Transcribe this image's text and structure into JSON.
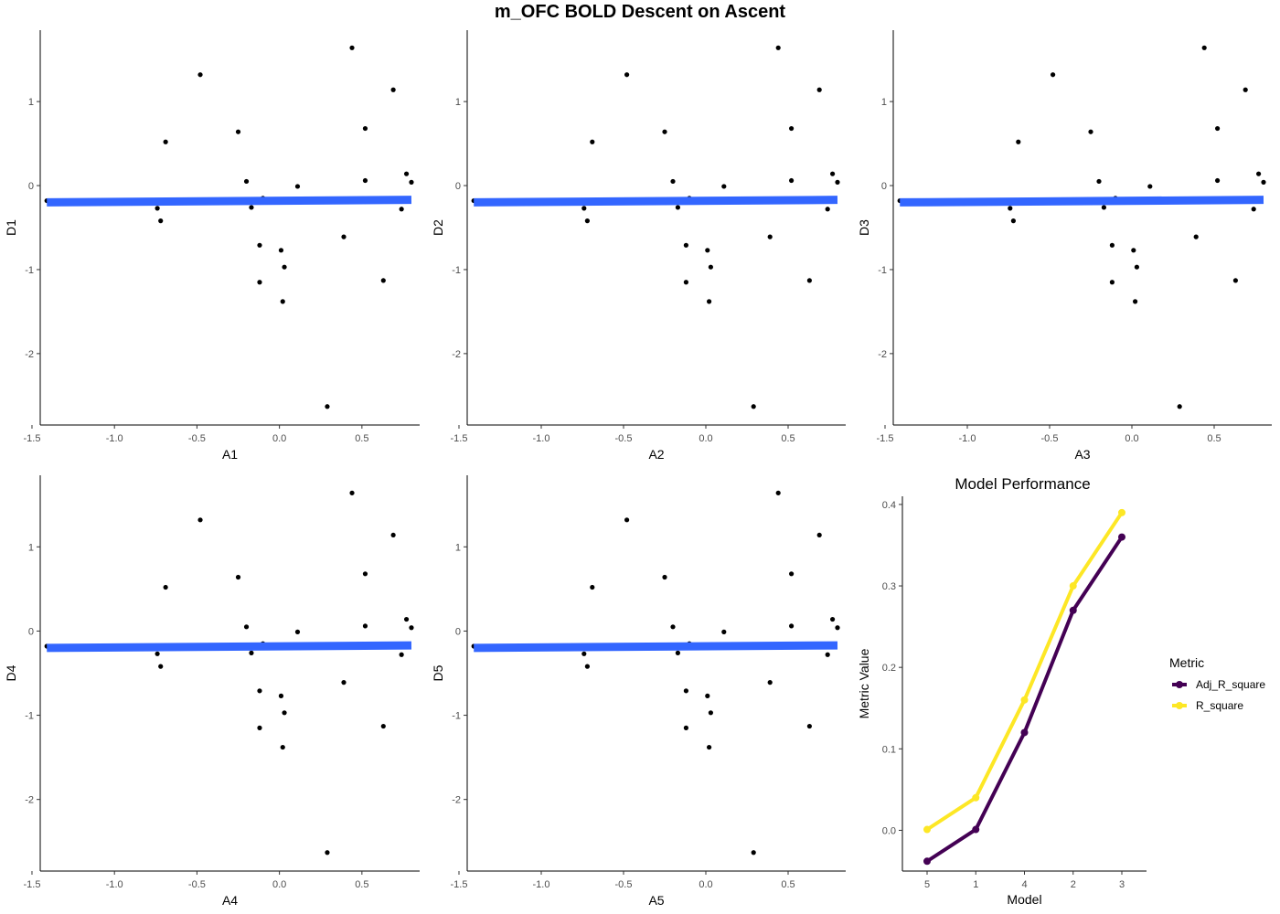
{
  "title": "m_OFC BOLD Descent on Ascent",
  "chart_data": [
    {
      "type": "scatter",
      "xlabel": "A1",
      "ylabel": "D1",
      "xlim": [
        -1.45,
        0.85
      ],
      "ylim": [
        -2.85,
        1.85
      ],
      "xticks": [
        -1.5,
        -1.0,
        -0.5,
        0.0,
        0.5
      ],
      "xtick_labels": [
        "-1.5",
        "-1.0",
        "-0.5",
        "0.0",
        "0.5"
      ],
      "yticks": [
        -2,
        -1,
        0,
        1
      ],
      "ytick_labels": [
        "-2",
        "-1",
        "0",
        "1"
      ],
      "grid": false,
      "points": {
        "x": [
          -1.41,
          -0.74,
          -0.72,
          -0.69,
          -0.48,
          -0.25,
          -0.2,
          -0.17,
          -0.12,
          -0.1,
          -0.12,
          0.01,
          0.02,
          0.03,
          0.11,
          0.29,
          0.39,
          0.44,
          0.52,
          0.52,
          0.63,
          0.69,
          0.74,
          0.77,
          0.8
        ],
        "y": [
          -0.18,
          -0.27,
          -0.42,
          0.52,
          1.32,
          0.64,
          0.05,
          -0.26,
          -0.71,
          -0.15,
          -1.15,
          -0.77,
          -1.38,
          -0.97,
          -0.01,
          -2.63,
          -0.61,
          1.64,
          0.06,
          0.68,
          -1.13,
          1.14,
          -0.28,
          0.14,
          0.04
        ]
      },
      "fit_line": {
        "x": [
          -1.41,
          0.8
        ],
        "y": [
          -0.2,
          -0.17
        ]
      }
    },
    {
      "type": "scatter",
      "xlabel": "A2",
      "ylabel": "D2",
      "xlim": [
        -1.45,
        0.85
      ],
      "ylim": [
        -2.85,
        1.85
      ],
      "xticks": [
        -1.5,
        -1.0,
        -0.5,
        0.0,
        0.5
      ],
      "xtick_labels": [
        "-1.5",
        "-1.0",
        "-0.5",
        "0.0",
        "0.5"
      ],
      "yticks": [
        -2,
        -1,
        0,
        1
      ],
      "ytick_labels": [
        "-2",
        "-1",
        "0",
        "1"
      ],
      "grid": false,
      "points": {
        "x": [
          -1.41,
          -0.74,
          -0.72,
          -0.69,
          -0.48,
          -0.25,
          -0.2,
          -0.17,
          -0.12,
          -0.1,
          -0.12,
          0.01,
          0.02,
          0.03,
          0.11,
          0.29,
          0.39,
          0.44,
          0.52,
          0.52,
          0.63,
          0.69,
          0.74,
          0.77,
          0.8
        ],
        "y": [
          -0.18,
          -0.27,
          -0.42,
          0.52,
          1.32,
          0.64,
          0.05,
          -0.26,
          -0.71,
          -0.15,
          -1.15,
          -0.77,
          -1.38,
          -0.97,
          -0.01,
          -2.63,
          -0.61,
          1.64,
          0.06,
          0.68,
          -1.13,
          1.14,
          -0.28,
          0.14,
          0.04
        ]
      },
      "fit_line": {
        "x": [
          -1.41,
          0.8
        ],
        "y": [
          -0.2,
          -0.17
        ]
      }
    },
    {
      "type": "scatter",
      "xlabel": "A3",
      "ylabel": "D3",
      "xlim": [
        -1.45,
        0.85
      ],
      "ylim": [
        -2.85,
        1.85
      ],
      "xticks": [
        -1.5,
        -1.0,
        -0.5,
        0.0,
        0.5
      ],
      "xtick_labels": [
        "-1.5",
        "-1.0",
        "-0.5",
        "0.0",
        "0.5"
      ],
      "yticks": [
        -2,
        -1,
        0,
        1
      ],
      "ytick_labels": [
        "-2",
        "-1",
        "0",
        "1"
      ],
      "grid": false,
      "points": {
        "x": [
          -1.41,
          -0.74,
          -0.72,
          -0.69,
          -0.48,
          -0.25,
          -0.2,
          -0.17,
          -0.12,
          -0.1,
          -0.12,
          0.01,
          0.02,
          0.03,
          0.11,
          0.29,
          0.39,
          0.44,
          0.52,
          0.52,
          0.63,
          0.69,
          0.74,
          0.77,
          0.8
        ],
        "y": [
          -0.18,
          -0.27,
          -0.42,
          0.52,
          1.32,
          0.64,
          0.05,
          -0.26,
          -0.71,
          -0.15,
          -1.15,
          -0.77,
          -1.38,
          -0.97,
          -0.01,
          -2.63,
          -0.61,
          1.64,
          0.06,
          0.68,
          -1.13,
          1.14,
          -0.28,
          0.14,
          0.04
        ]
      },
      "fit_line": {
        "x": [
          -1.41,
          0.8
        ],
        "y": [
          -0.2,
          -0.17
        ]
      }
    },
    {
      "type": "scatter",
      "xlabel": "A4",
      "ylabel": "D4",
      "xlim": [
        -1.45,
        0.85
      ],
      "ylim": [
        -2.85,
        1.85
      ],
      "xticks": [
        -1.5,
        -1.0,
        -0.5,
        0.0,
        0.5
      ],
      "xtick_labels": [
        "-1.5",
        "-1.0",
        "-0.5",
        "0.0",
        "0.5"
      ],
      "yticks": [
        -2,
        -1,
        0,
        1
      ],
      "ytick_labels": [
        "-2",
        "-1",
        "0",
        "1"
      ],
      "grid": false,
      "points": {
        "x": [
          -1.41,
          -0.74,
          -0.72,
          -0.69,
          -0.48,
          -0.25,
          -0.2,
          -0.17,
          -0.12,
          -0.1,
          -0.12,
          0.01,
          0.02,
          0.03,
          0.11,
          0.29,
          0.39,
          0.44,
          0.52,
          0.52,
          0.63,
          0.69,
          0.74,
          0.77,
          0.8
        ],
        "y": [
          -0.18,
          -0.27,
          -0.42,
          0.52,
          1.32,
          0.64,
          0.05,
          -0.26,
          -0.71,
          -0.15,
          -1.15,
          -0.77,
          -1.38,
          -0.97,
          -0.01,
          -2.63,
          -0.61,
          1.64,
          0.06,
          0.68,
          -1.13,
          1.14,
          -0.28,
          0.14,
          0.04
        ]
      },
      "fit_line": {
        "x": [
          -1.41,
          0.8
        ],
        "y": [
          -0.2,
          -0.17
        ]
      }
    },
    {
      "type": "scatter",
      "xlabel": "A5",
      "ylabel": "D5",
      "xlim": [
        -1.45,
        0.85
      ],
      "ylim": [
        -2.85,
        1.85
      ],
      "xticks": [
        -1.5,
        -1.0,
        -0.5,
        0.0,
        0.5
      ],
      "xtick_labels": [
        "-1.5",
        "-1.0",
        "-0.5",
        "0.0",
        "0.5"
      ],
      "yticks": [
        -2,
        -1,
        0,
        1
      ],
      "ytick_labels": [
        "-2",
        "-1",
        "0",
        "1"
      ],
      "grid": false,
      "points": {
        "x": [
          -1.41,
          -0.74,
          -0.72,
          -0.69,
          -0.48,
          -0.25,
          -0.2,
          -0.17,
          -0.12,
          -0.1,
          -0.12,
          0.01,
          0.02,
          0.03,
          0.11,
          0.29,
          0.39,
          0.44,
          0.52,
          0.52,
          0.63,
          0.69,
          0.74,
          0.77,
          0.8
        ],
        "y": [
          -0.18,
          -0.27,
          -0.42,
          0.52,
          1.32,
          0.64,
          0.05,
          -0.26,
          -0.71,
          -0.15,
          -1.15,
          -0.77,
          -1.38,
          -0.97,
          -0.01,
          -2.63,
          -0.61,
          1.64,
          0.06,
          0.68,
          -1.13,
          1.14,
          -0.28,
          0.14,
          0.04
        ]
      },
      "fit_line": {
        "x": [
          -1.41,
          0.8
        ],
        "y": [
          -0.2,
          -0.17
        ]
      }
    },
    {
      "type": "line",
      "title": "Model Performance",
      "xlabel": "Model",
      "ylabel": "Metric Value",
      "categories": [
        "5",
        "1",
        "4",
        "2",
        "3"
      ],
      "ylim": [
        -0.05,
        0.41
      ],
      "yticks": [
        0.0,
        0.1,
        0.2,
        0.3,
        0.4
      ],
      "ytick_labels": [
        "0.0",
        "0.1",
        "0.2",
        "0.3",
        "0.4"
      ],
      "grid": false,
      "legend_title": "Metric",
      "legend_position": "right",
      "series": [
        {
          "name": "Adj_R_square",
          "values": [
            -0.038,
            0.001,
            0.12,
            0.27,
            0.36
          ],
          "color": "#440154"
        },
        {
          "name": "R_square",
          "values": [
            0.001,
            0.04,
            0.16,
            0.3,
            0.39
          ],
          "color": "#FDE725"
        }
      ]
    }
  ],
  "colors": {
    "points": "#000000",
    "fit_line": "#3366FF",
    "axis": "#000000",
    "tick_label": "#4d4d4d"
  }
}
